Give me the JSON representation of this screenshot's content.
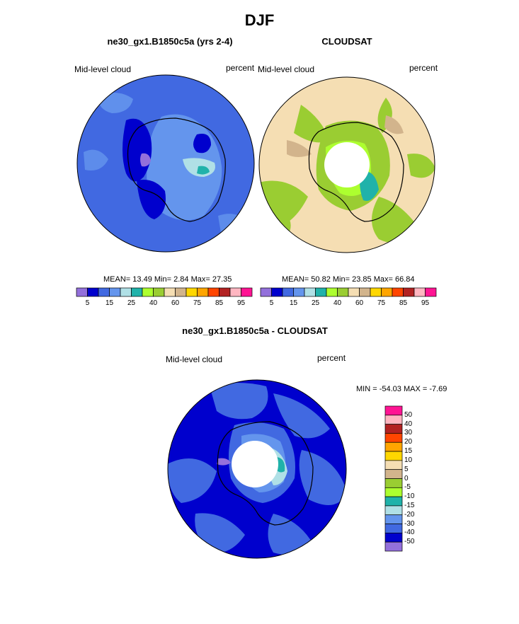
{
  "page_title": "DJF",
  "plots": {
    "model": {
      "title": "ne30_gx1.B1850c5a (yrs 2-4)",
      "left_label": "Mid-level cloud",
      "right_label": "percent",
      "mean_label": "MEAN=",
      "mean": "13.49",
      "min_label": "Min=",
      "min": "2.84",
      "max_label": "Max=",
      "max": "27.35"
    },
    "obs": {
      "title": "CLOUDSAT",
      "left_label": "Mid-level cloud",
      "right_label": "percent",
      "mean_label": "MEAN=",
      "mean": "50.82",
      "min_label": "Min=",
      "min": "23.85",
      "max_label": "Max=",
      "max": "66.84"
    },
    "diff": {
      "title": "ne30_gx1.B1850c5a - CLOUDSAT",
      "left_label": "Mid-level cloud",
      "right_label": "percent",
      "minmax_text": "MIN = -54.03 MAX =  -7.69"
    }
  },
  "chart_data": [
    {
      "type": "heatmap",
      "name": "model",
      "projection": "south polar stereographic",
      "title": "ne30_gx1.B1850c5a (yrs 2-4)",
      "variable": "Mid-level cloud",
      "units": "percent",
      "stats": {
        "mean": 13.49,
        "min": 2.84,
        "max": 27.35
      },
      "colorbar": {
        "levels": [
          5,
          10,
          15,
          20,
          25,
          30,
          40,
          50,
          60,
          70,
          75,
          80,
          85,
          90,
          95
        ],
        "tick_labels": [
          "5",
          "15",
          "25",
          "40",
          "60",
          "75",
          "85",
          "95"
        ],
        "colors": [
          "#9370DB",
          "#0000CD",
          "#4169E1",
          "#6495ED",
          "#B0E0E6",
          "#20B2AA",
          "#ADFF2F",
          "#9ACD32",
          "#F5DEB3",
          "#D2B48C",
          "#FFD700",
          "#FFA500",
          "#FF4500",
          "#B22222",
          "#FFB6C1",
          "#FF1493"
        ]
      }
    },
    {
      "type": "heatmap",
      "name": "obs",
      "projection": "south polar stereographic",
      "title": "CLOUDSAT",
      "variable": "Mid-level cloud",
      "units": "percent",
      "stats": {
        "mean": 50.82,
        "min": 23.85,
        "max": 66.84
      },
      "colorbar": {
        "levels": [
          5,
          10,
          15,
          20,
          25,
          30,
          40,
          50,
          60,
          70,
          75,
          80,
          85,
          90,
          95
        ],
        "tick_labels": [
          "5",
          "15",
          "25",
          "40",
          "60",
          "75",
          "85",
          "95"
        ],
        "colors": [
          "#9370DB",
          "#0000CD",
          "#4169E1",
          "#6495ED",
          "#B0E0E6",
          "#20B2AA",
          "#ADFF2F",
          "#9ACD32",
          "#F5DEB3",
          "#D2B48C",
          "#FFD700",
          "#FFA500",
          "#FF4500",
          "#B22222",
          "#FFB6C1",
          "#FF1493"
        ]
      }
    },
    {
      "type": "heatmap",
      "name": "difference",
      "projection": "south polar stereographic",
      "title": "ne30_gx1.B1850c5a - CLOUDSAT",
      "variable": "Mid-level cloud",
      "units": "percent",
      "stats": {
        "min": -54.03,
        "max": -7.69
      },
      "colorbar": {
        "levels": [
          50,
          40,
          30,
          20,
          15,
          10,
          5,
          0,
          -5,
          -10,
          -15,
          -20,
          -30,
          -40,
          -50
        ],
        "tick_labels": [
          "50",
          "40",
          "30",
          "20",
          "15",
          "10",
          "5",
          "0",
          "-5",
          "-10",
          "-15",
          "-20",
          "-30",
          "-40",
          "-50"
        ],
        "colors_top_to_bottom": [
          "#FF1493",
          "#FFB6C1",
          "#B22222",
          "#FF4500",
          "#FFA500",
          "#FFD700",
          "#F5DEB3",
          "#D2B48C",
          "#9ACD32",
          "#ADFF2F",
          "#20B2AA",
          "#B0E0E6",
          "#6495ED",
          "#4169E1",
          "#0000CD",
          "#9370DB"
        ]
      }
    }
  ]
}
